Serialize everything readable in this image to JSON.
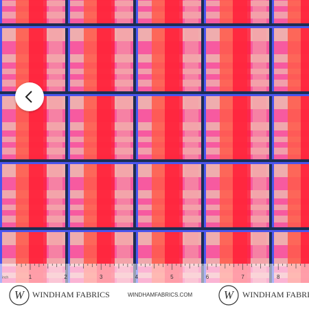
{
  "ruler": {
    "unit": "inch",
    "numbers": [
      1,
      2,
      3,
      4,
      5,
      6,
      7,
      8
    ]
  },
  "branding": {
    "logo": "W",
    "name": "WINDHAM FABRICS",
    "url": "WINDHAMFABRICS.COM"
  }
}
